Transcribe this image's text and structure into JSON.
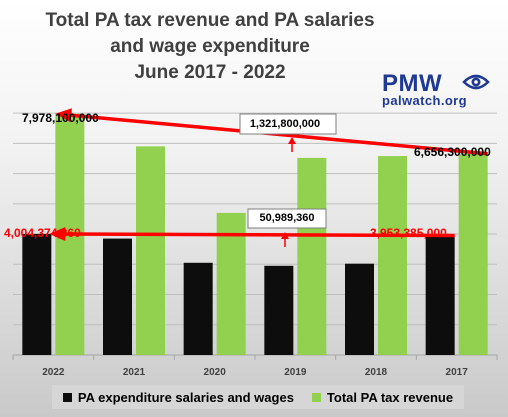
{
  "chart_data": {
    "type": "bar",
    "title_lines": [
      "Total PA tax revenue and PA salaries",
      "and wage expenditure",
      "June 2017 - 2022"
    ],
    "categories": [
      "2022",
      "2021",
      "2020",
      "2019",
      "2018",
      "2017"
    ],
    "series": [
      {
        "name": "PA expenditure salaries and wages",
        "color": "#0d0d0d",
        "values": [
          4004374360,
          3850000000,
          3050000000,
          2950000000,
          3020000000,
          3953385000
        ]
      },
      {
        "name": "Total PA tax revenue",
        "color": "#92d050",
        "values": [
          7978100000,
          6900000000,
          4700000000,
          6520000000,
          6580000000,
          6656300000
        ]
      }
    ],
    "ylim": [
      0,
      8500000000
    ],
    "grid": true,
    "legend_position": "bottom",
    "annotations": [
      {
        "text": "7,978,100,000",
        "color": "#000000",
        "boxed": false
      },
      {
        "text": "6,656,300,000",
        "color": "#000000",
        "boxed": false
      },
      {
        "text": "1,321,800,000",
        "color": "#000000",
        "boxed": true
      },
      {
        "text": "4,004,374,360",
        "color": "#ff0000",
        "boxed": false
      },
      {
        "text": "3,953,385,000",
        "color": "#ff0000",
        "boxed": false
      },
      {
        "text": "50,989,360",
        "color": "#000000",
        "boxed": true
      }
    ],
    "arrow_color": "#ff0000"
  },
  "logo": {
    "main": "PMW",
    "sub": "palwatch.org",
    "icon": "eye-icon",
    "color": "#1f3a93"
  }
}
